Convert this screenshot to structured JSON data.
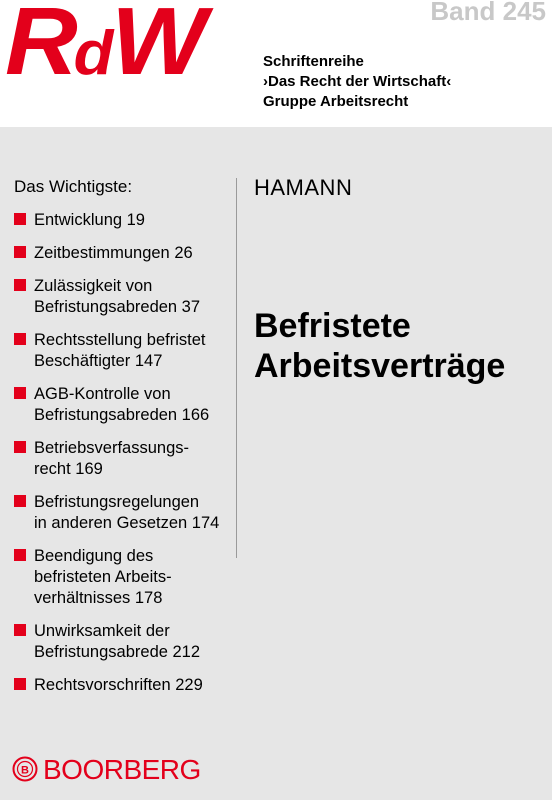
{
  "header": {
    "logo": "RdW",
    "band": "Band 245",
    "series_lines": [
      "Schriftenreihe",
      "›Das Recht der Wirtschaft‹",
      "Gruppe Arbeitsrecht"
    ]
  },
  "contents": {
    "heading": "Das Wichtigste:",
    "items": [
      "Entwicklung  19",
      "Zeitbestimmungen  26",
      "Zulässigkeit von\nBefristungsabreden  37",
      "Rechtsstellung befristet\nBeschäftigter  147",
      "AGB-Kontrolle von\nBefristungsabreden  166",
      "Betriebsverfassungs-\nrecht  169",
      "Befristungsregelungen\nin anderen Gesetzen  174",
      "Beendigung des\nbefristeten Arbeits-\nverhältnisses  178",
      "Unwirksamkeit der\nBefristungsabrede  212",
      "Rechtsvorschriften  229"
    ]
  },
  "book": {
    "author": "HAMANN",
    "title_lines": [
      "Befristete",
      "Arbeitsverträge"
    ]
  },
  "publisher": {
    "name": "BOORBERG",
    "emblem_icon": "boorberg-emblem-icon"
  },
  "colors": {
    "accent_red": "#e3001b",
    "panel_gray": "#e6e6e6",
    "band_gray": "#c8c8c8"
  }
}
